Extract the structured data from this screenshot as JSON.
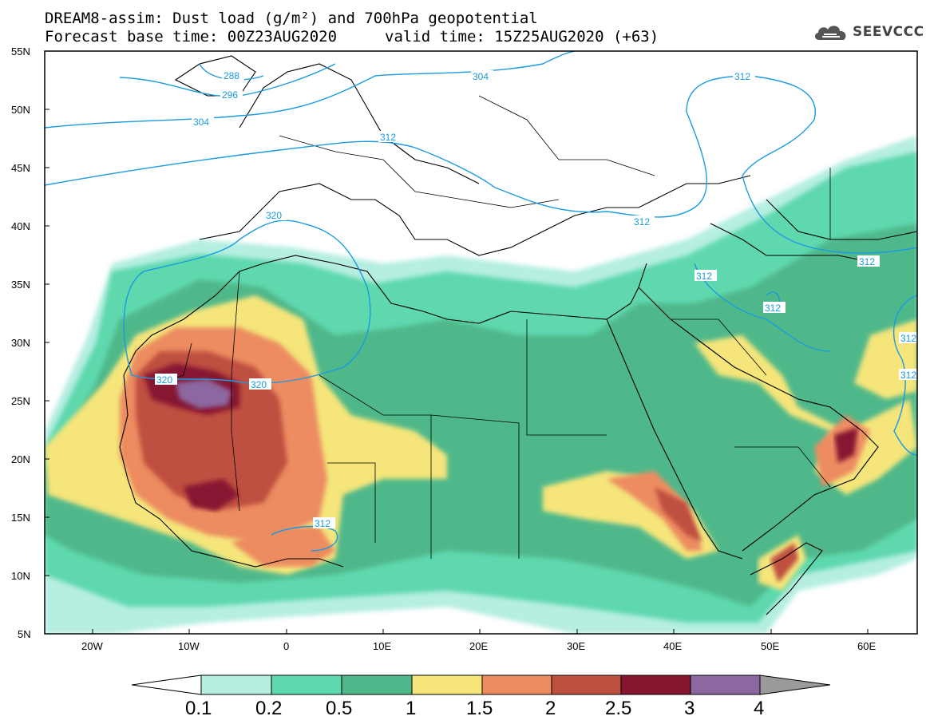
{
  "title": {
    "line1": "DREAM8-assim: Dust load (g/m²) and 700hPa geopotential",
    "line2a": "Forecast base time: 00Z23AUG2020",
    "line2b": "valid time: 15Z25AUG2020 (+63)"
  },
  "logo": {
    "text": "SEEVCCC",
    "icon": "cloud-icon"
  },
  "map": {
    "lat_labels": [
      "55N",
      "50N",
      "45N",
      "40N",
      "35N",
      "30N",
      "25N",
      "20N",
      "15N",
      "10N",
      "5N"
    ],
    "lon_labels": [
      "20W",
      "10W",
      "0",
      "10E",
      "20E",
      "30E",
      "40E",
      "50E",
      "60E"
    ],
    "contour_labels": [
      "288",
      "296",
      "304",
      "304",
      "312",
      "312",
      "312",
      "312",
      "312",
      "312",
      "312",
      "320",
      "320",
      "320",
      "312",
      "312"
    ]
  },
  "colorbar": {
    "labels": [
      "0.1",
      "0.2",
      "0.5",
      "1",
      "1.5",
      "2",
      "2.5",
      "3",
      "4"
    ],
    "colors": [
      "#b6eee2",
      "#5ed8ae",
      "#4fb88a",
      "#f5e57a",
      "#ec8c60",
      "#bf5040",
      "#861530",
      "#8c68a0",
      "#9a9a9a"
    ]
  }
}
